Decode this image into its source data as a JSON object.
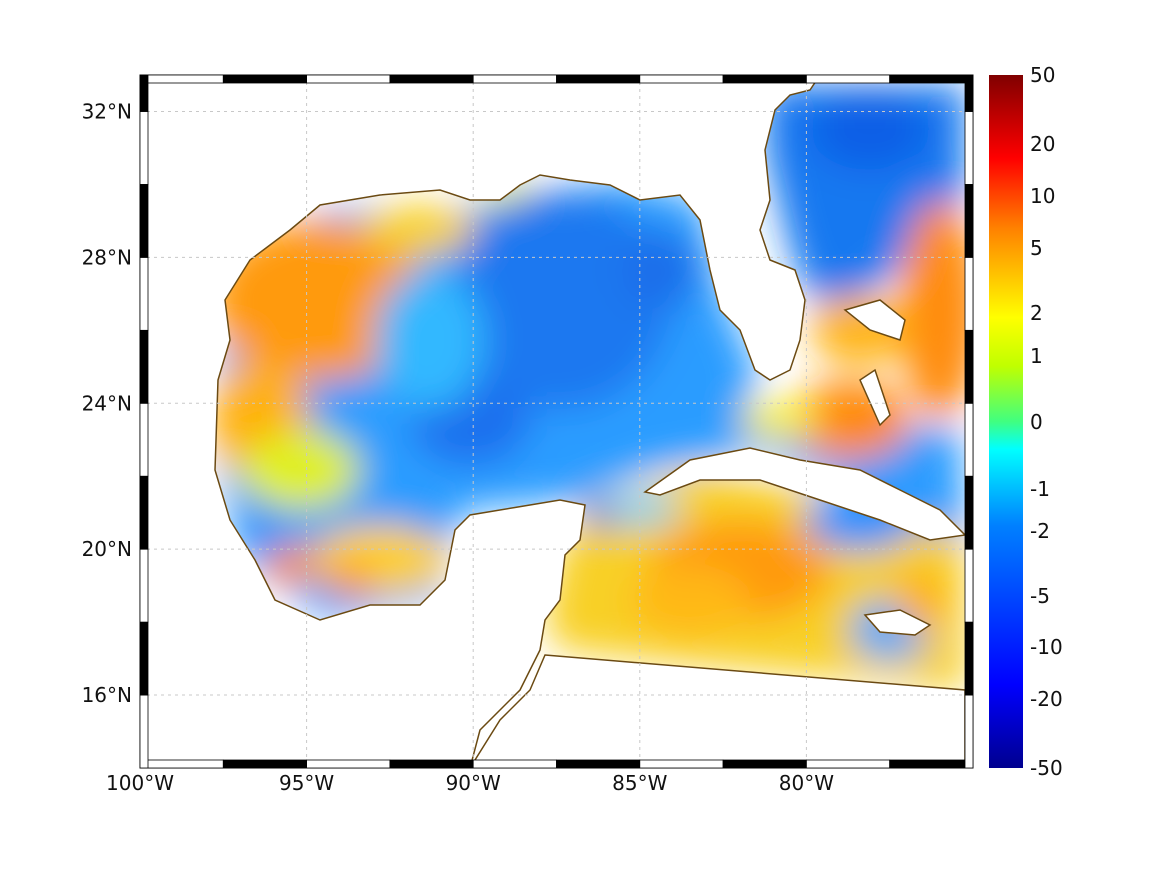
{
  "map": {
    "lon_range": [
      -100,
      -75
    ],
    "lat_range": [
      14,
      33
    ],
    "colormap": "jet",
    "colorbar_scale": "signed-log",
    "grid": true,
    "frame_style": "alternating black/white"
  },
  "axes": {
    "lon_ticks": [
      {
        "value": -100,
        "label": "100°W"
      },
      {
        "value": -95,
        "label": "95°W"
      },
      {
        "value": -90,
        "label": "90°W"
      },
      {
        "value": -85,
        "label": "85°W"
      },
      {
        "value": -80,
        "label": "80°W"
      }
    ],
    "lat_ticks": [
      {
        "value": 32,
        "label": "32°N"
      },
      {
        "value": 28,
        "label": "28°N"
      },
      {
        "value": 24,
        "label": "24°N"
      },
      {
        "value": 20,
        "label": "20°N"
      },
      {
        "value": 16,
        "label": "16°N"
      }
    ]
  },
  "colorbar": {
    "ticks": [
      "50",
      "20",
      "10",
      "5",
      "2",
      "1",
      "0",
      "-1",
      "-2",
      "-5",
      "-10",
      "-20",
      "-50"
    ]
  },
  "colors": {
    "coastline": "#6b4a12",
    "land": "#ffffff",
    "grid": "#c8c8c8"
  }
}
